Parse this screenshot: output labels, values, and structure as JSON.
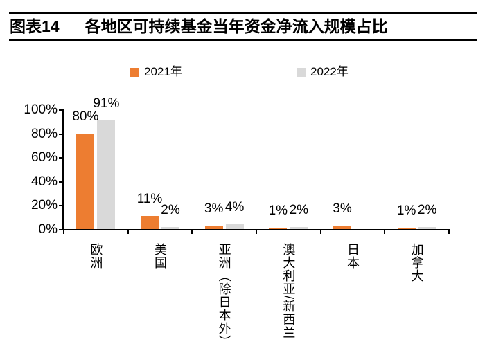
{
  "header": {
    "title_prefix": "图表14",
    "title": "各地区可持续基金当年资金净流入规模占比"
  },
  "chart_data": {
    "type": "bar",
    "categories": [
      "欧洲",
      "美国",
      "亚洲（除日本外）",
      "澳大利亚/新西兰",
      "日本",
      "加拿大"
    ],
    "series": [
      {
        "name": "2021年",
        "color": "#ED7D31",
        "values": [
          80,
          11,
          3,
          1,
          3,
          1
        ],
        "labels": [
          "80%",
          "11%",
          "3%",
          "1%",
          "3%",
          "1%"
        ]
      },
      {
        "name": "2022年",
        "color": "#D9D9D9",
        "values": [
          91,
          2,
          4,
          2,
          0,
          2
        ],
        "labels": [
          "91%",
          "2%",
          "4%",
          "2%",
          "",
          "2%"
        ]
      }
    ],
    "title": "各地区可持续基金当年资金净流入规模占比",
    "xlabel": "",
    "ylabel": "",
    "ylim": [
      0,
      100
    ],
    "yticks": [
      "0%",
      "20%",
      "40%",
      "60%",
      "80%",
      "100%"
    ],
    "grid": "off",
    "legend_position": "top"
  }
}
